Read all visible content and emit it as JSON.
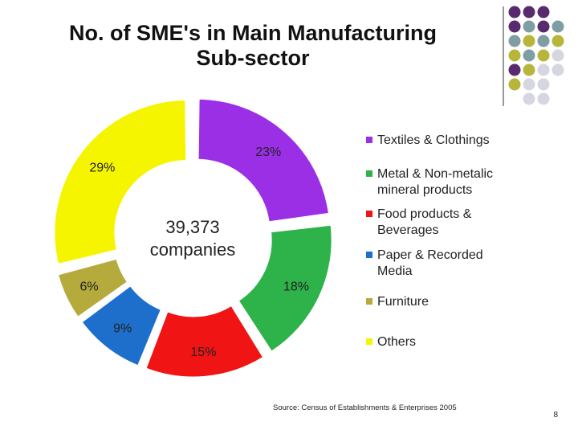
{
  "slide": {
    "title_line1": "No. of SME's in Main Manufacturing",
    "title_line2": "Sub-sector",
    "source": "Source: Census of Establishments & Enterprises 2005",
    "page_number": "8"
  },
  "chart_data": {
    "type": "pie",
    "style": "donut-exploded",
    "center_value": "39,373",
    "center_label": "companies",
    "legend_position": "right",
    "slices": [
      {
        "name": "Textiles & Clothings",
        "value": 23,
        "label": "23%",
        "color": "#9B2FE6"
      },
      {
        "name": "Metal & Non-metalic mineral products",
        "value": 18,
        "label": "18%",
        "color": "#2DB34A"
      },
      {
        "name": "Food products & Beverages",
        "value": 15,
        "label": "15%",
        "color": "#F01414"
      },
      {
        "name": "Paper & Recorded Media",
        "value": 9,
        "label": "9%",
        "color": "#1E6FCC"
      },
      {
        "name": "Furniture",
        "value": 6,
        "label": "6%",
        "color": "#B5AA3C"
      },
      {
        "name": "Others",
        "value": 29,
        "label": "29%",
        "color": "#F5F500"
      }
    ]
  },
  "legend": {
    "items": [
      {
        "line1": "Textiles & Clothings",
        "line2": "",
        "color": "#9B2FE6"
      },
      {
        "line1": "Metal & Non-metalic",
        "line2": "mineral products",
        "color": "#2DB34A"
      },
      {
        "line1": "Food products &",
        "line2": "Beverages",
        "color": "#F01414"
      },
      {
        "line1": "Paper & Recorded",
        "line2": "Media",
        "color": "#1E6FCC"
      },
      {
        "line1": "Furniture",
        "line2": "",
        "color": "#B5AA3C"
      },
      {
        "line1": "Others",
        "line2": "",
        "color": "#F5F500"
      }
    ]
  },
  "decoration": {
    "colors": {
      "purple": "#5A2A6E",
      "slate": "#7E9EA4",
      "olive": "#B8B63A",
      "gray": "#D6D6E0"
    }
  }
}
